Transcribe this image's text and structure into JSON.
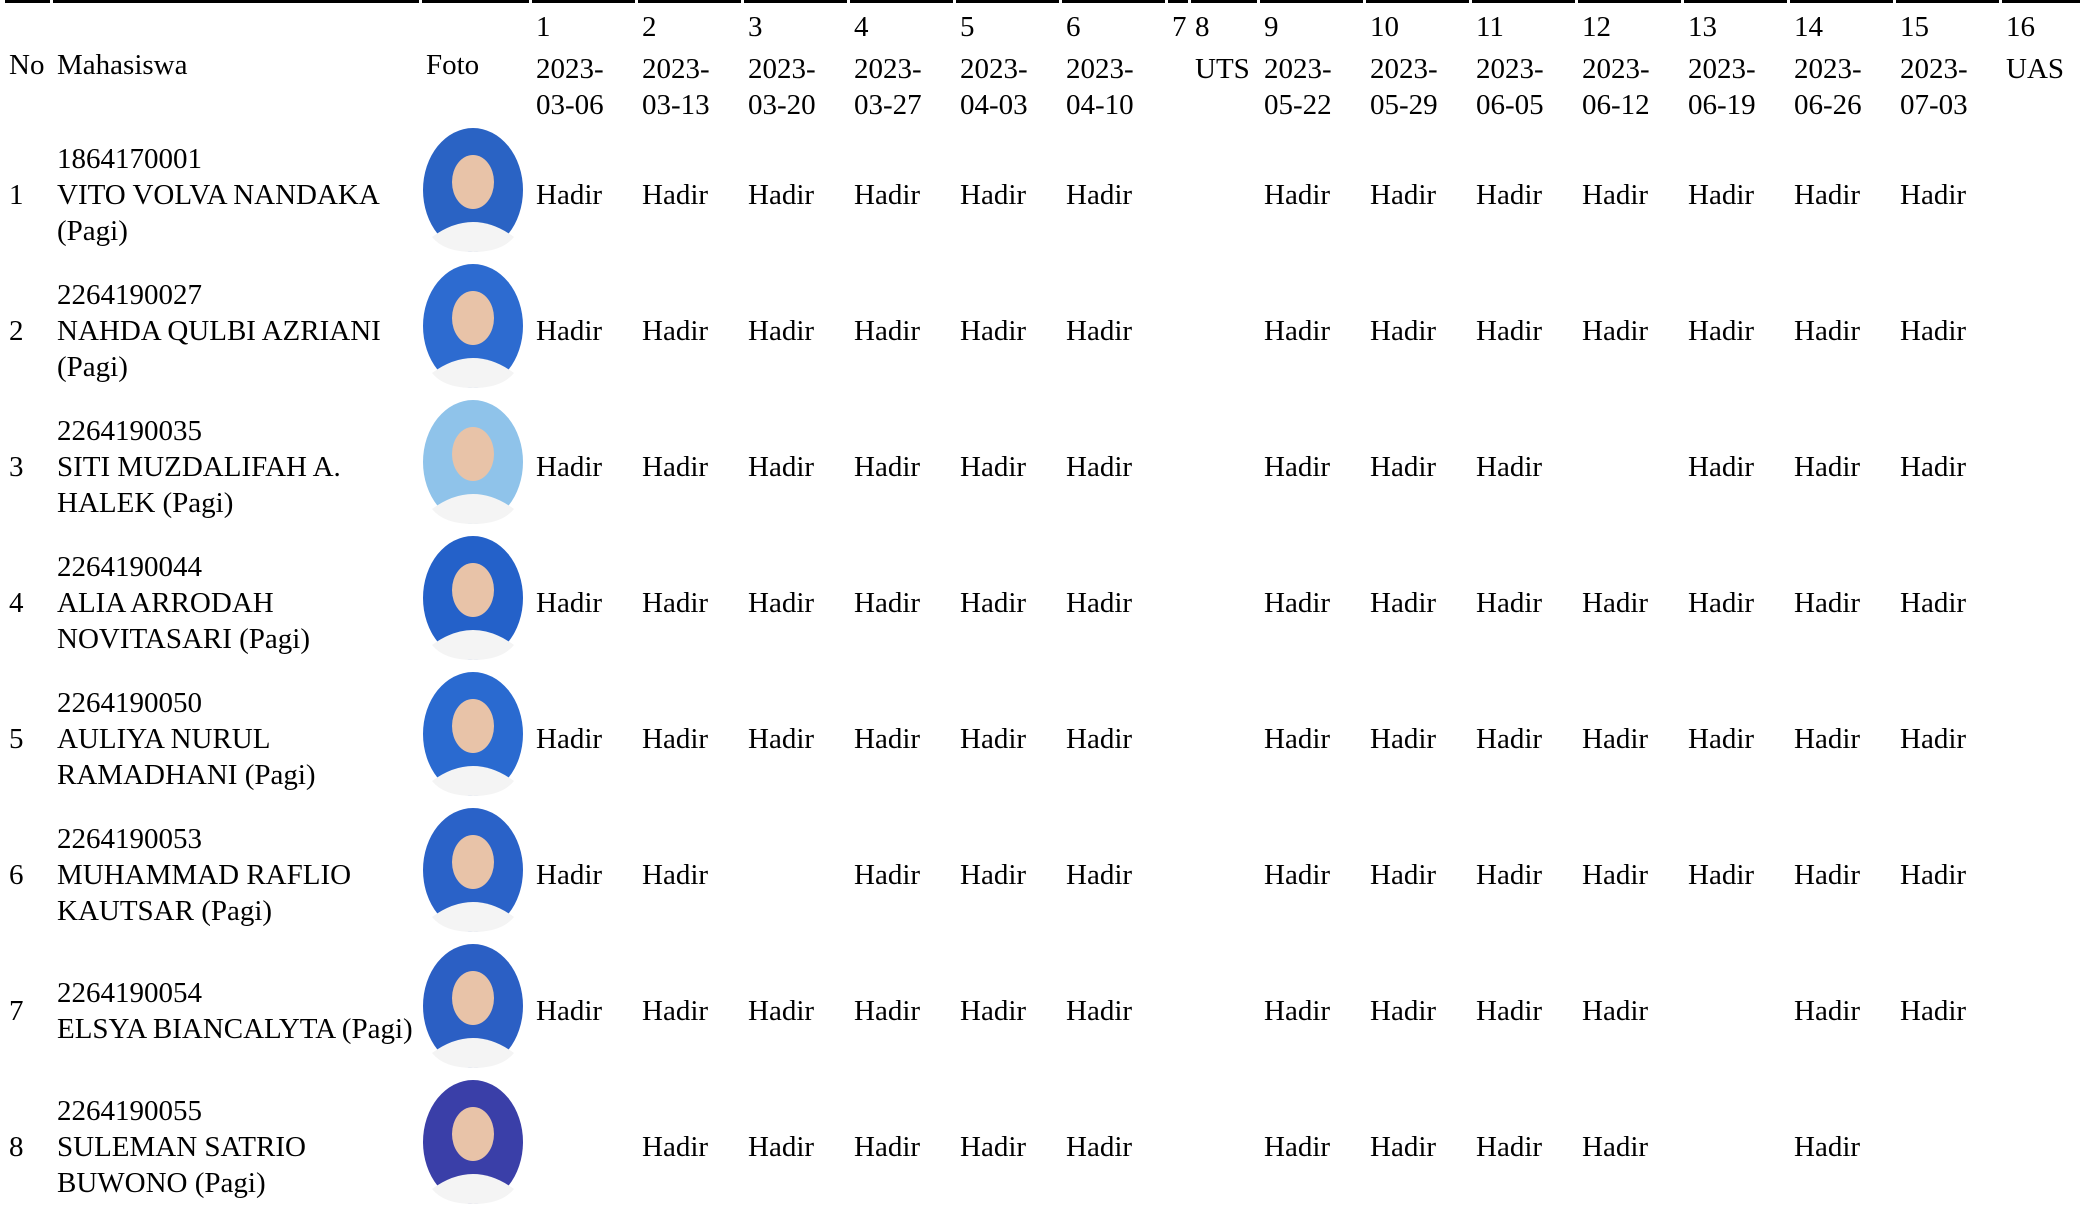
{
  "header": {
    "no": "No",
    "student": "Mahasiswa",
    "photo": "Foto",
    "meetings": [
      {
        "number": "1",
        "date": "2023-03-06"
      },
      {
        "number": "2",
        "date": "2023-03-13"
      },
      {
        "number": "3",
        "date": "2023-03-20"
      },
      {
        "number": "4",
        "date": "2023-03-27"
      },
      {
        "number": "5",
        "date": "2023-04-03"
      },
      {
        "number": "6",
        "date": "2023-04-10"
      },
      {
        "number": "7"
      },
      {
        "number": "8",
        "label": "UTS"
      },
      {
        "number": "9",
        "date": "2023-05-22"
      },
      {
        "number": "10",
        "date": "2023-05-29"
      },
      {
        "number": "11",
        "date": "2023-06-05"
      },
      {
        "number": "12",
        "date": "2023-06-12"
      },
      {
        "number": "13",
        "date": "2023-06-19"
      },
      {
        "number": "14",
        "date": "2023-06-26"
      },
      {
        "number": "15",
        "date": "2023-07-03"
      },
      {
        "number": "16",
        "label": "UAS"
      }
    ]
  },
  "rows": [
    {
      "no": "1",
      "nim": "1864170001",
      "name": "VITO VOLVA NANDAKA (Pagi)",
      "attendance": [
        "Hadir",
        "Hadir",
        "Hadir",
        "Hadir",
        "Hadir",
        "Hadir",
        null,
        null,
        "Hadir",
        "Hadir",
        "Hadir",
        "Hadir",
        "Hadir",
        "Hadir",
        "Hadir",
        null
      ]
    },
    {
      "no": "2",
      "nim": "2264190027",
      "name": "NAHDA QULBI AZRIANI (Pagi)",
      "attendance": [
        "Hadir",
        "Hadir",
        "Hadir",
        "Hadir",
        "Hadir",
        "Hadir",
        null,
        null,
        "Hadir",
        "Hadir",
        "Hadir",
        "Hadir",
        "Hadir",
        "Hadir",
        "Hadir",
        null
      ]
    },
    {
      "no": "3",
      "nim": "2264190035",
      "name": "SITI MUZDALIFAH A. HALEK (Pagi)",
      "attendance": [
        "Hadir",
        "Hadir",
        "Hadir",
        "Hadir",
        "Hadir",
        "Hadir",
        null,
        null,
        "Hadir",
        "Hadir",
        "Hadir",
        null,
        "Hadir",
        "Hadir",
        "Hadir",
        null
      ]
    },
    {
      "no": "4",
      "nim": "2264190044",
      "name": "ALIA ARRODAH NOVITASARI (Pagi)",
      "attendance": [
        "Hadir",
        "Hadir",
        "Hadir",
        "Hadir",
        "Hadir",
        "Hadir",
        null,
        null,
        "Hadir",
        "Hadir",
        "Hadir",
        "Hadir",
        "Hadir",
        "Hadir",
        "Hadir",
        null
      ]
    },
    {
      "no": "5",
      "nim": "2264190050",
      "name": "AULIYA NURUL RAMADHANI (Pagi)",
      "attendance": [
        "Hadir",
        "Hadir",
        "Hadir",
        "Hadir",
        "Hadir",
        "Hadir",
        null,
        null,
        "Hadir",
        "Hadir",
        "Hadir",
        "Hadir",
        "Hadir",
        "Hadir",
        "Hadir",
        null
      ]
    },
    {
      "no": "6",
      "nim": "2264190053",
      "name": "MUHAMMAD RAFLIO KAUTSAR (Pagi)",
      "attendance": [
        "Hadir",
        "Hadir",
        null,
        "Hadir",
        "Hadir",
        "Hadir",
        null,
        null,
        "Hadir",
        "Hadir",
        "Hadir",
        "Hadir",
        "Hadir",
        "Hadir",
        "Hadir",
        null
      ]
    },
    {
      "no": "7",
      "nim": "2264190054",
      "name": "ELSYA BIANCALYTA (Pagi)",
      "attendance": [
        "Hadir",
        "Hadir",
        "Hadir",
        "Hadir",
        "Hadir",
        "Hadir",
        null,
        null,
        "Hadir",
        "Hadir",
        "Hadir",
        "Hadir",
        null,
        "Hadir",
        "Hadir",
        null
      ]
    },
    {
      "no": "8",
      "nim": "2264190055",
      "name": "SULEMAN SATRIO BUWONO (Pagi)",
      "attendance": [
        null,
        "Hadir",
        "Hadir",
        "Hadir",
        "Hadir",
        "Hadir",
        null,
        null,
        "Hadir",
        "Hadir",
        "Hadir",
        "Hadir",
        null,
        "Hadir",
        null,
        null
      ]
    }
  ]
}
